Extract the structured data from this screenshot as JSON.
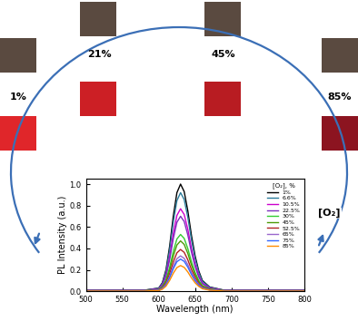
{
  "chart_data": {
    "type": "line",
    "x_label": "Wavelength (nm)",
    "y_label": "PL Intensity (a.u.)",
    "legend_title": "[O₂], %",
    "legend": "upper right",
    "x": [
      500,
      580,
      600,
      605,
      610,
      615,
      620,
      625,
      630,
      635,
      640,
      645,
      650,
      655,
      660,
      670,
      690,
      800
    ],
    "xlim": [
      500,
      800
    ],
    "xticks": [
      500,
      550,
      600,
      650,
      700,
      750,
      800
    ],
    "ylim": [
      0,
      1.05
    ],
    "yticks": [
      {
        "value": 0,
        "label": "0.0"
      },
      {
        "value": 0.2,
        "label": "0.2"
      },
      {
        "value": 0.4,
        "label": "0.4"
      },
      {
        "value": 0.6,
        "label": "0.6"
      },
      {
        "value": 0.8,
        "label": "0.8"
      },
      {
        "value": 1.0,
        "label": "1.0"
      }
    ],
    "series": [
      {
        "name": "1%",
        "color": "#000000",
        "values": [
          0.01,
          0.01,
          0.03,
          0.08,
          0.2,
          0.42,
          0.7,
          0.92,
          1.0,
          0.93,
          0.75,
          0.52,
          0.33,
          0.19,
          0.1,
          0.04,
          0.01,
          0.01
        ]
      },
      {
        "name": "6.6%",
        "color": "#2a7b9b",
        "values": [
          0.009,
          0.009,
          0.028,
          0.074,
          0.184,
          0.386,
          0.644,
          0.846,
          0.92,
          0.856,
          0.69,
          0.478,
          0.304,
          0.175,
          0.092,
          0.037,
          0.009,
          0.009
        ]
      },
      {
        "name": "10.5%",
        "color": "#cc00cc",
        "values": [
          0.008,
          0.008,
          0.023,
          0.062,
          0.154,
          0.323,
          0.539,
          0.708,
          0.77,
          0.716,
          0.578,
          0.4,
          0.254,
          0.146,
          0.077,
          0.031,
          0.008,
          0.008
        ]
      },
      {
        "name": "22.5%",
        "color": "#7b2fbe",
        "values": [
          0.007,
          0.007,
          0.021,
          0.056,
          0.14,
          0.294,
          0.49,
          0.644,
          0.7,
          0.651,
          0.525,
          0.364,
          0.231,
          0.133,
          0.07,
          0.028,
          0.007,
          0.007
        ]
      },
      {
        "name": "30%",
        "color": "#33cc33",
        "values": [
          0.005,
          0.005,
          0.016,
          0.042,
          0.106,
          0.223,
          0.371,
          0.488,
          0.53,
          0.493,
          0.398,
          0.276,
          0.175,
          0.101,
          0.053,
          0.021,
          0.005,
          0.005
        ]
      },
      {
        "name": "45%",
        "color": "#4e9a06",
        "values": [
          0.005,
          0.005,
          0.014,
          0.038,
          0.094,
          0.197,
          0.329,
          0.432,
          0.47,
          0.437,
          0.353,
          0.244,
          0.155,
          0.089,
          0.047,
          0.019,
          0.005,
          0.005
        ]
      },
      {
        "name": "52.5%",
        "color": "#b22222",
        "values": [
          0.004,
          0.004,
          0.012,
          0.031,
          0.078,
          0.164,
          0.273,
          0.359,
          0.39,
          0.363,
          0.293,
          0.203,
          0.129,
          0.074,
          0.039,
          0.016,
          0.004,
          0.004
        ]
      },
      {
        "name": "65%",
        "color": "#9966cc",
        "values": [
          0.003,
          0.003,
          0.01,
          0.026,
          0.066,
          0.139,
          0.231,
          0.304,
          0.33,
          0.307,
          0.248,
          0.172,
          0.109,
          0.063,
          0.033,
          0.013,
          0.003,
          0.003
        ]
      },
      {
        "name": "75%",
        "color": "#3366ff",
        "values": [
          0.003,
          0.003,
          0.009,
          0.024,
          0.06,
          0.126,
          0.21,
          0.276,
          0.3,
          0.279,
          0.225,
          0.156,
          0.099,
          0.057,
          0.03,
          0.012,
          0.003,
          0.003
        ]
      },
      {
        "name": "85%",
        "color": "#ff8c00",
        "values": [
          0.002,
          0.002,
          0.007,
          0.019,
          0.048,
          0.101,
          0.168,
          0.221,
          0.24,
          0.223,
          0.18,
          0.125,
          0.079,
          0.046,
          0.024,
          0.01,
          0.002,
          0.002
        ]
      }
    ]
  },
  "photo_labels": {
    "left": "1%",
    "top_left": "21%",
    "top_right": "45%",
    "right": "85%"
  },
  "cycle_label": "[O₂]"
}
